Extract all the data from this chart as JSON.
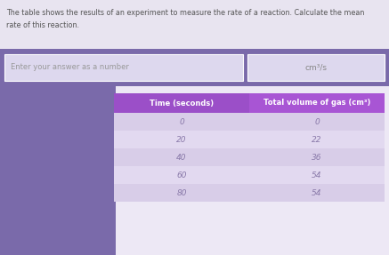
{
  "title_line1": "The table shows the results of an experiment to measure the rate of a reaction. Calculate the mean",
  "title_line2": "rate of this reaction.",
  "input_label": "Enter your answer as a number",
  "unit_label": "cm³/s",
  "col1_header": "Time (seconds)",
  "col2_header": "Total volume of gas (cm³)",
  "time_values": [
    "0",
    "20",
    "40",
    "60",
    "80"
  ],
  "volume_values": [
    "0",
    "22",
    "36",
    "54",
    "54"
  ],
  "header_bg1": "#9b4fc8",
  "header_bg2": "#a855d4",
  "row_bg_odd": "#d8cde8",
  "row_bg_even": "#e2d9f0",
  "header_text_color": "#ffffff",
  "row_text_color": "#8a7aaa",
  "title_bg": "#e8e4f0",
  "input_band_bg": "#7a6aaa",
  "input_box_bg": "#ddd8ee",
  "unit_box_bg": "#ddd8ee",
  "table_area_bg": "#c8c0e0",
  "body_bg": "#ede8f5",
  "title_text_color": "#555555",
  "input_text_color": "#999999",
  "unit_text_color": "#888888"
}
